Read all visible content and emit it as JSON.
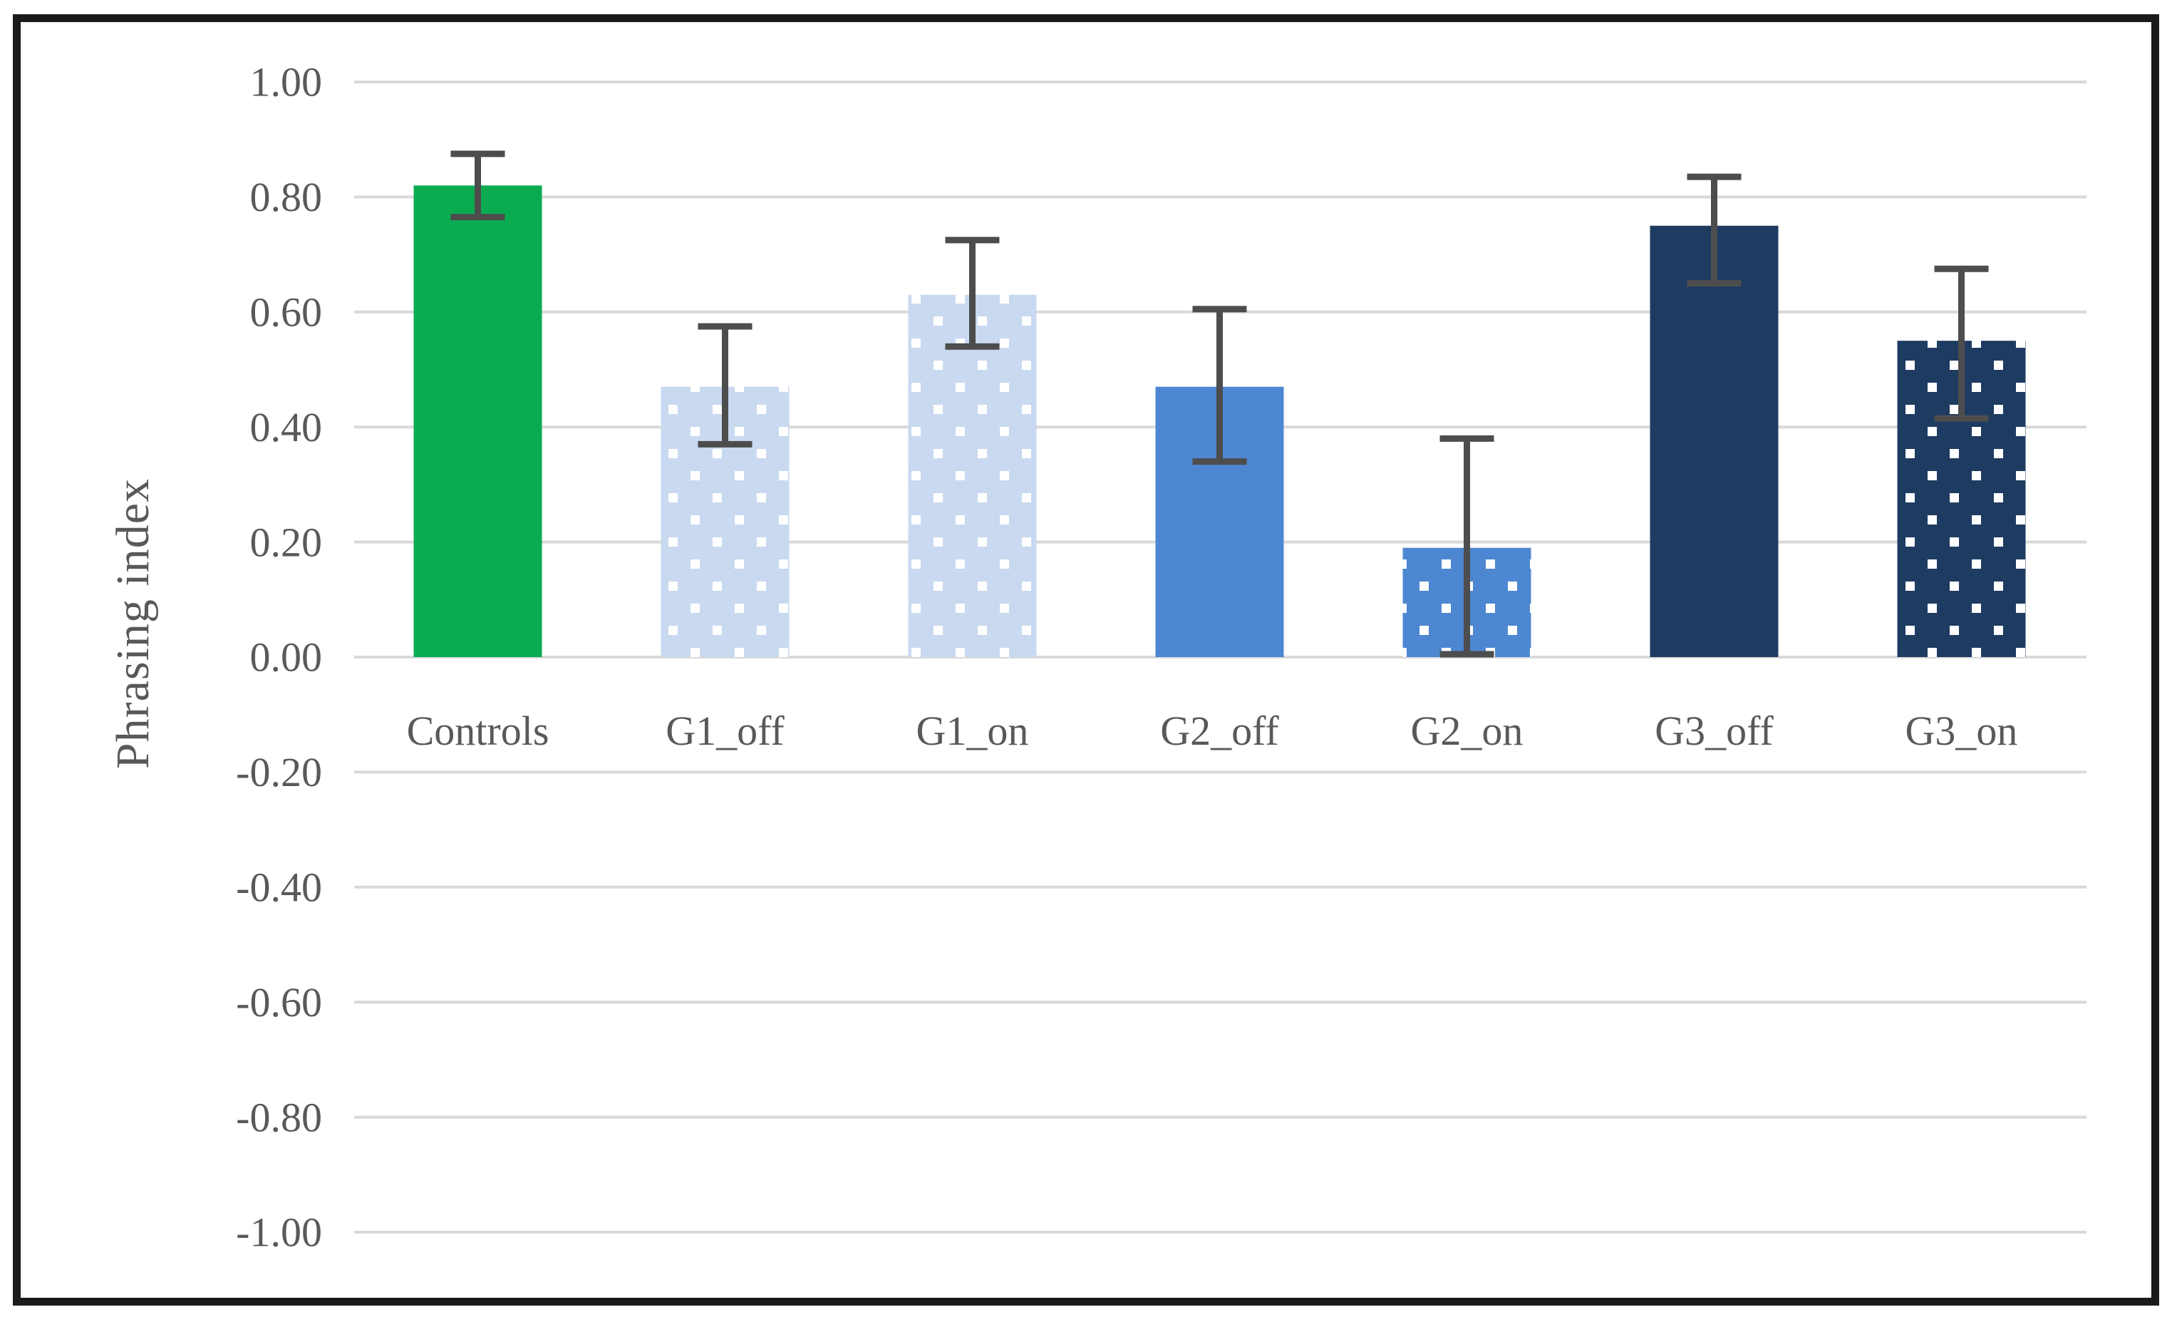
{
  "figure": {
    "background": "#ffffff",
    "border_color": "#1a1a1a"
  },
  "chart_data": {
    "type": "bar",
    "title": "",
    "xlabel": "",
    "ylabel": "Phrasing index",
    "ylim": [
      -1.0,
      1.0
    ],
    "ytick_step": 0.2,
    "ytick_labels": [
      "1.00",
      "0.80",
      "0.60",
      "0.40",
      "0.20",
      "0.00",
      "-0.20",
      "-0.40",
      "-0.60",
      "-0.80",
      "-1.00"
    ],
    "grid": true,
    "legend_position": "none",
    "categories": [
      "Controls",
      "G1_off",
      "G1_on",
      "G2_off",
      "G2_on",
      "G3_off",
      "G3_on"
    ],
    "series": [
      {
        "name": "Phrasing index",
        "values": [
          0.82,
          0.47,
          0.63,
          0.47,
          0.19,
          0.75,
          0.55
        ],
        "error_plus": [
          0.055,
          0.105,
          0.095,
          0.135,
          0.19,
          0.085,
          0.125
        ],
        "error_minus": [
          0.055,
          0.1,
          0.09,
          0.13,
          0.185,
          0.1,
          0.135
        ]
      }
    ],
    "bar_styles": [
      {
        "category": "Controls",
        "fill": "#0BAB52",
        "pattern": "solid"
      },
      {
        "category": "G1_off",
        "fill": "#C9D9F0",
        "pattern": "dots",
        "pattern_note": ""
      },
      {
        "category": "G1_on",
        "fill": "#C9D9F0",
        "pattern": "dots"
      },
      {
        "category": "G2_off",
        "fill": "#4E87D1",
        "pattern": "solid"
      },
      {
        "category": "G2_on",
        "fill": "#4E87D1",
        "pattern": "dots"
      },
      {
        "category": "G3_off",
        "fill": "#1E3B61",
        "pattern": "solid"
      },
      {
        "category": "G3_on",
        "fill": "#1E3B61",
        "pattern": "dots"
      }
    ],
    "colors": {
      "gridline": "#D9D9D9",
      "error_bar": "#4D4D4D",
      "axis_text": "#595959",
      "dot": "#FFFFFF"
    }
  }
}
